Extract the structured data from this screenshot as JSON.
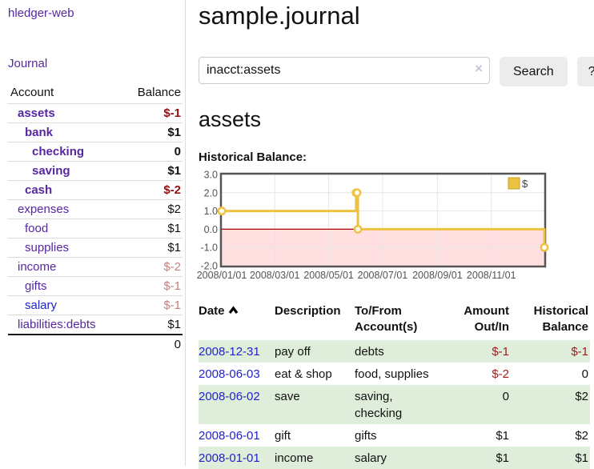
{
  "app": {
    "title": "hledger-web"
  },
  "sidebar": {
    "journal_link": "Journal",
    "accounts_table": {
      "account_header": "Account",
      "balance_header": "Balance",
      "rows": [
        {
          "name": "assets",
          "indent": 0,
          "bold": true,
          "link_style": "visited",
          "balance": "$-1",
          "balance_style": "neg-strong"
        },
        {
          "name": "bank",
          "indent": 1,
          "bold": true,
          "link_style": "visited",
          "balance": "$1",
          "balance_style": "pos"
        },
        {
          "name": "checking",
          "indent": 2,
          "bold": true,
          "link_style": "visited",
          "balance": "0",
          "balance_style": "pos"
        },
        {
          "name": "saving",
          "indent": 2,
          "bold": true,
          "link_style": "visited",
          "balance": "$1",
          "balance_style": "pos"
        },
        {
          "name": "cash",
          "indent": 1,
          "bold": true,
          "link_style": "visited",
          "balance": "$-2",
          "balance_style": "neg-strong"
        },
        {
          "name": "expenses",
          "indent": 0,
          "bold": false,
          "link_style": "visited",
          "balance": "$2",
          "balance_style": "pos"
        },
        {
          "name": "food",
          "indent": 1,
          "bold": false,
          "link_style": "visited",
          "balance": "$1",
          "balance_style": "pos"
        },
        {
          "name": "supplies",
          "indent": 1,
          "bold": false,
          "link_style": "visited",
          "balance": "$1",
          "balance_style": "pos"
        },
        {
          "name": "income",
          "indent": 0,
          "bold": false,
          "link_style": "visited",
          "balance": "$-2",
          "balance_style": "neg-muted"
        },
        {
          "name": "gifts",
          "indent": 1,
          "bold": false,
          "link_style": "visited",
          "balance": "$-1",
          "balance_style": "neg-muted"
        },
        {
          "name": "salary",
          "indent": 1,
          "bold": false,
          "link_style": "unvisited",
          "balance": "$-1",
          "balance_style": "neg-muted"
        },
        {
          "name": "liabilities:debts",
          "indent": 0,
          "bold": false,
          "link_style": "visited",
          "balance": "$1",
          "balance_style": "pos"
        }
      ],
      "total": "0"
    }
  },
  "main": {
    "title": "sample.journal",
    "search": {
      "value": "inacct:assets",
      "clear_icon": "×",
      "search_button": "Search",
      "help_button": "?"
    },
    "account_heading": "assets",
    "chart_heading": "Historical Balance:"
  },
  "chart_data": {
    "type": "line",
    "step": true,
    "title": "Historical Balance",
    "series": [
      {
        "name": "$",
        "color": "#edc240",
        "points": [
          [
            "2008-01-01",
            1
          ],
          [
            "2008-06-01",
            2
          ],
          [
            "2008-06-02",
            2
          ],
          [
            "2008-06-03",
            0
          ],
          [
            "2008-12-31",
            -1
          ]
        ]
      }
    ],
    "xlim": [
      "2008-01-01",
      "2008-12-31"
    ],
    "ylim": [
      -2,
      3
    ],
    "y_ticks": [
      3.0,
      2.0,
      1.0,
      0.0,
      -1.0,
      -2.0
    ],
    "y_tick_labels": [
      "3.0",
      "2.0",
      "1.0",
      "0.0",
      "-1.0",
      "-2.0"
    ],
    "x_tick_dates": [
      "2008-01-01",
      "2008-03-01",
      "2008-05-01",
      "2008-07-01",
      "2008-09-01",
      "2008-11-01"
    ],
    "x_tick_labels": [
      "2008/01/01",
      "2008/03/01",
      "2008/05/01",
      "2008/07/01",
      "2008/09/01",
      "2008/11/01"
    ],
    "legend": {
      "label": "$",
      "position": "top-right"
    },
    "grid": true,
    "colors": {
      "grid_line": "#e6e6e6",
      "plot_border": "#555555",
      "negative_region": "#ffdfdf",
      "zero_line": "#aa0000",
      "tick_text": "#545454",
      "marker_fill": "#ffffff"
    }
  },
  "register": {
    "headers": {
      "date": "Date",
      "description": "Description",
      "accounts": "To/From Account(s)",
      "amount": "Amount Out/In",
      "balance": "Historical Balance"
    },
    "sort_icon": "chevron-up",
    "rows": [
      {
        "date": "2008-12-31",
        "description": "pay off",
        "accounts": "debts",
        "amount": "$-1",
        "amount_neg": true,
        "balance": "$-1",
        "balance_neg": true
      },
      {
        "date": "2008-06-03",
        "description": "eat & shop",
        "accounts": "food, supplies",
        "amount": "$-2",
        "amount_neg": true,
        "balance": "0",
        "balance_neg": false
      },
      {
        "date": "2008-06-02",
        "description": "save",
        "accounts": "saving, checking",
        "amount": "0",
        "amount_neg": false,
        "balance": "$2",
        "balance_neg": false
      },
      {
        "date": "2008-06-01",
        "description": "gift",
        "accounts": "gifts",
        "amount": "$1",
        "amount_neg": false,
        "balance": "$2",
        "balance_neg": false
      },
      {
        "date": "2008-01-01",
        "description": "income",
        "accounts": "salary",
        "amount": "$1",
        "amount_neg": false,
        "balance": "$1",
        "balance_neg": false
      }
    ]
  }
}
